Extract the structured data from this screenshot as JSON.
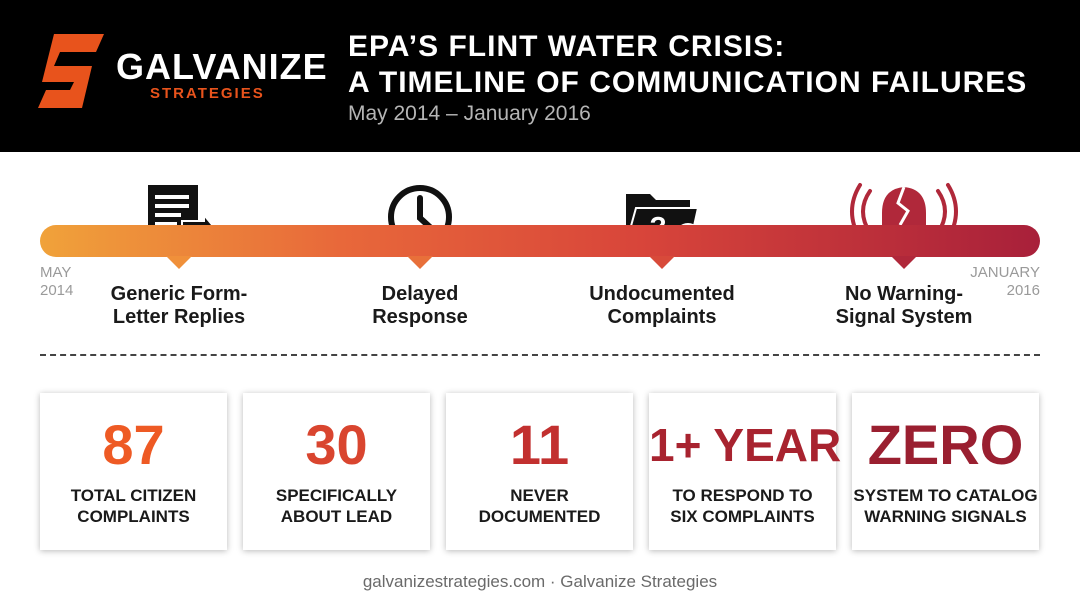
{
  "brand": {
    "name": "GALVANIZE",
    "sub": "STRATEGIES",
    "mark_icon": "galvanize-g-logo",
    "accent_color": "#e8531c"
  },
  "header": {
    "title_line1": "EPA’S FLINT WATER CRISIS:",
    "title_line2": "A TIMELINE OF COMMUNICATION FAILURES",
    "subtitle": "May 2014 – January 2016"
  },
  "timeline": {
    "start_label_line1": "MAY",
    "start_label_line2": "2014",
    "end_label_line1": "JANUARY",
    "end_label_line2": "2016",
    "milestones": [
      {
        "line1": "Generic Form-",
        "line2": "Letter Replies",
        "icon": "form-letter-document-icon",
        "pointer_color": "#f0903a"
      },
      {
        "line1": "Delayed",
        "line2": "Response",
        "icon": "clock-icon",
        "pointer_color": "#e8703a"
      },
      {
        "line1": "Undocumented",
        "line2": "Complaints",
        "icon": "question-folder-icon",
        "pointer_color": "#d84a3a"
      },
      {
        "line1": "No Warning-",
        "line2": "Signal System",
        "icon": "broken-alarm-bell-icon",
        "pointer_color": "#b0283a"
      }
    ]
  },
  "stats": [
    {
      "value": "87",
      "label_line1": "TOTAL CITIZEN",
      "label_line2": "COMPLAINTS",
      "color": "#ee5a24"
    },
    {
      "value": "30",
      "label_line1": "SPECIFICALLY",
      "label_line2": "ABOUT LEAD",
      "color": "#d9452f"
    },
    {
      "value": "11",
      "label_line1": "NEVER",
      "label_line2": "DOCUMENTED",
      "color": "#c2302f"
    },
    {
      "value": "1+ YEAR",
      "label_line1": "TO RESPOND TO",
      "label_line2": "SIX COMPLAINTS",
      "color": "#a8232f"
    },
    {
      "value": "ZERO",
      "label_line1": "SYSTEM TO CATALOG",
      "label_line2": "WARNING SIGNALS",
      "color": "#9a1f30"
    }
  ],
  "footer": {
    "text": "galvanizestrategies.com · Galvanize Strategies"
  }
}
